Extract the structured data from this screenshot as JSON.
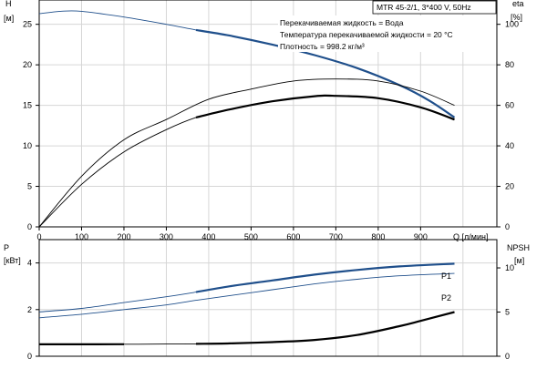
{
  "header": {
    "pump_label": "MTR 45-2/1, 3*400 V, 50Hz",
    "liquid_line": "Перекачиваемая жидкость = Вода",
    "temperature_line": "Температура перекачиваемой жидкости = 20 °C",
    "density_line": "Плотность = 998.2 кг/м³"
  },
  "chart_data": [
    {
      "type": "line",
      "axes": {
        "x": {
          "label": "Q [л/мин]",
          "range": [
            0,
            1080
          ],
          "ticks": [
            0,
            100,
            200,
            300,
            400,
            500,
            600,
            700,
            800,
            900
          ]
        },
        "y_left": {
          "label_top": "H",
          "label_unit": "[м]",
          "range": [
            0,
            28
          ],
          "ticks": [
            0,
            5,
            10,
            15,
            20,
            25
          ]
        },
        "y_right": {
          "label_top": "eta",
          "label_unit": "[%]",
          "range": [
            0,
            112
          ],
          "ticks": [
            0,
            20,
            40,
            60,
            80,
            100
          ]
        }
      },
      "grid": true,
      "series": [
        {
          "name": "H",
          "axis": "y_left",
          "color": "#1f4f8b",
          "x": [
            0,
            50,
            100,
            200,
            300,
            370,
            450,
            550,
            650,
            750,
            850,
            920,
            980
          ],
          "y": [
            26.3,
            26.6,
            26.6,
            25.9,
            25.0,
            24.3,
            23.6,
            22.5,
            21.2,
            19.6,
            17.5,
            15.6,
            13.5
          ],
          "bold_from": 370
        },
        {
          "name": "eta-upper",
          "axis": "y_right",
          "color": "#000000",
          "x": [
            0,
            100,
            200,
            300,
            400,
            500,
            600,
            700,
            800,
            900,
            980
          ],
          "y": [
            0,
            25,
            43,
            53,
            63,
            68,
            72,
            73,
            72,
            67,
            60
          ]
        },
        {
          "name": "eta-lower",
          "axis": "y_right",
          "color": "#000000",
          "x": [
            0,
            100,
            200,
            300,
            370,
            450,
            550,
            650,
            700,
            800,
            900,
            980
          ],
          "y": [
            0,
            21,
            37,
            48,
            54,
            58,
            62,
            64.5,
            64.7,
            63.5,
            59,
            53
          ],
          "bold_from": 370
        }
      ]
    },
    {
      "type": "line",
      "axes": {
        "x": {
          "range": [
            0,
            1080
          ]
        },
        "y_left": {
          "label_top": "P",
          "label_unit": "[кВт]",
          "range": [
            0,
            5
          ],
          "ticks": [
            0,
            2,
            4
          ]
        },
        "y_right": {
          "label_top": "NPSH",
          "label_unit": "[м]",
          "range": [
            0,
            13.2
          ],
          "ticks": [
            0,
            5,
            10
          ]
        }
      },
      "grid": true,
      "series": [
        {
          "name": "P1",
          "axis": "y_left",
          "color": "#1f4f8b",
          "x": [
            0,
            100,
            200,
            300,
            370,
            450,
            550,
            650,
            750,
            850,
            980
          ],
          "y": [
            1.9,
            2.05,
            2.3,
            2.55,
            2.75,
            3.0,
            3.25,
            3.5,
            3.7,
            3.85,
            3.97
          ],
          "bold_from": 370
        },
        {
          "name": "P2",
          "axis": "y_left",
          "color": "#1f4f8b",
          "x": [
            0,
            100,
            200,
            300,
            370,
            450,
            550,
            650,
            750,
            850,
            980
          ],
          "y": [
            1.65,
            1.8,
            2.0,
            2.2,
            2.4,
            2.6,
            2.85,
            3.1,
            3.3,
            3.45,
            3.55
          ]
        },
        {
          "name": "NPSH",
          "axis": "y_right",
          "color": "#000000",
          "x": [
            0,
            100,
            200,
            300,
            370,
            450,
            550,
            650,
            750,
            850,
            900,
            980
          ],
          "y": [
            1.35,
            1.35,
            1.36,
            1.38,
            1.4,
            1.45,
            1.6,
            1.85,
            2.4,
            3.4,
            4.0,
            5.0
          ],
          "bold_segments": [
            [
              0,
              200
            ],
            [
              370,
              980
            ]
          ]
        }
      ]
    }
  ]
}
